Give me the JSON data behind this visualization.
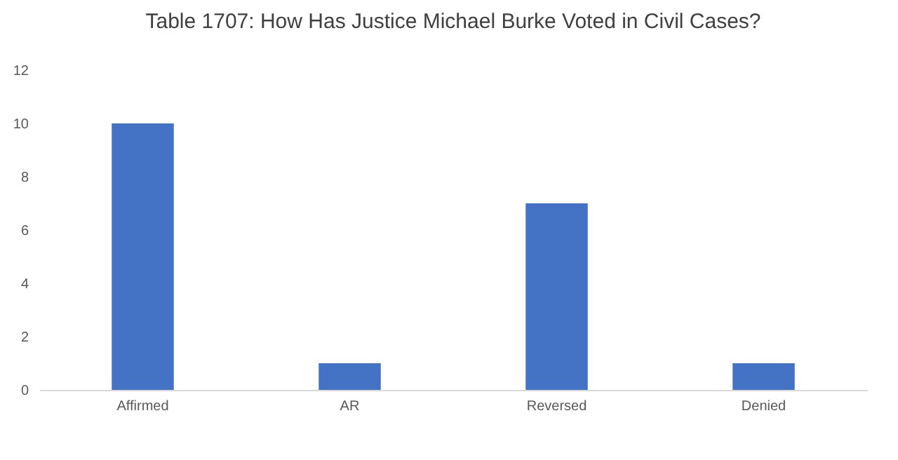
{
  "chart_data": {
    "type": "bar",
    "title": "Table 1707: How Has Justice Michael Burke Voted in Civil Cases?",
    "categories": [
      "Affirmed",
      "AR",
      "Reversed",
      "Denied"
    ],
    "values": [
      10,
      1,
      7,
      1
    ],
    "color": "#4472c4",
    "ylim": [
      0,
      12
    ],
    "yticks": [
      0,
      2,
      4,
      6,
      8,
      10,
      12
    ],
    "grid": false
  }
}
